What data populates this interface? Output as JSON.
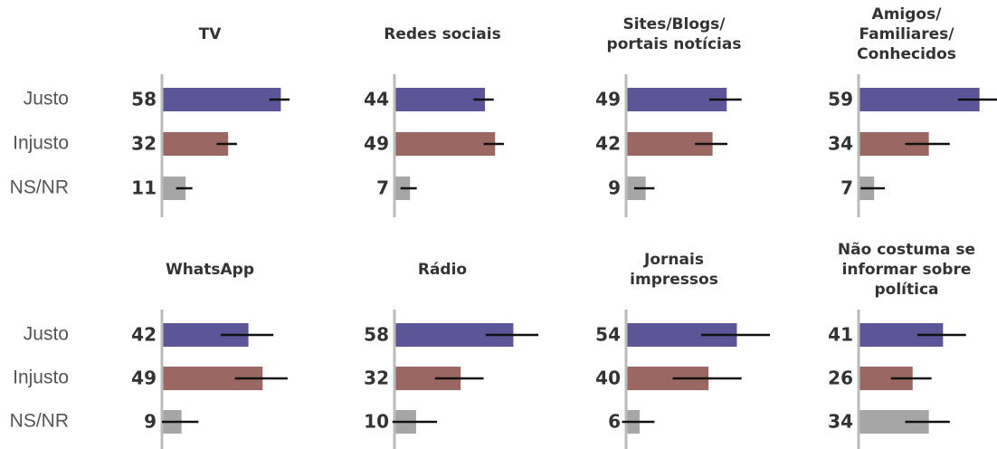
{
  "chart_data": {
    "type": "bar",
    "categories": [
      "Justo",
      "Injusto",
      "NS/NR"
    ],
    "colors": [
      "#5c5698",
      "#9b6762",
      "#a6a6a6"
    ],
    "xlim": [
      0,
      100
    ],
    "panels": [
      {
        "title": "TV",
        "values": [
          58,
          32,
          11
        ],
        "errors": [
          5,
          5,
          4
        ]
      },
      {
        "title": "Redes sociais",
        "values": [
          44,
          49,
          7
        ],
        "errors": [
          5,
          5,
          4
        ]
      },
      {
        "title": "Sites/Blogs/\nportais notícias",
        "values": [
          49,
          42,
          9
        ],
        "errors": [
          8,
          8,
          5
        ]
      },
      {
        "title": "Amigos/\nFamiliares/\nConhecidos",
        "values": [
          59,
          34,
          7
        ],
        "errors": [
          10,
          11,
          6
        ]
      },
      {
        "title": "WhatsApp",
        "values": [
          42,
          49,
          9
        ],
        "errors": [
          13,
          13,
          9
        ]
      },
      {
        "title": "Rádio",
        "values": [
          58,
          32,
          10
        ],
        "errors": [
          13,
          12,
          11
        ]
      },
      {
        "title": "Jornais\nimpressos",
        "values": [
          54,
          40,
          6
        ],
        "errors": [
          17,
          17,
          8
        ]
      },
      {
        "title": "Não costuma se\ninformar sobre\npolítica",
        "values": [
          41,
          26,
          34
        ],
        "errors": [
          12,
          10,
          11
        ]
      }
    ]
  }
}
